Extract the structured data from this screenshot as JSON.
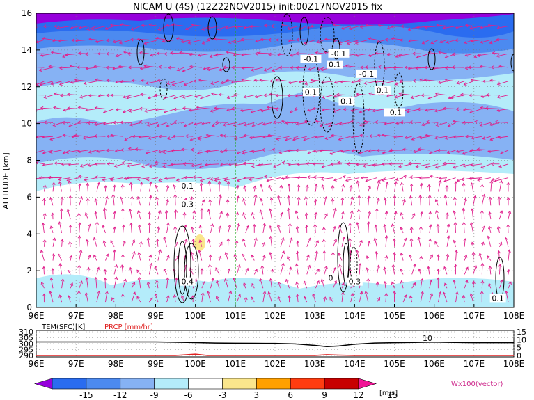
{
  "chart_data": [
    {
      "type": "heatmap",
      "title": "NICAM U (4S)  (12Z22NOV2015)  init:00Z17NOV2015  fix",
      "xlabel": "",
      "ylabel": "ALTITUDE  [km]",
      "x_ticks": [
        "96E",
        "97E",
        "98E",
        "99E",
        "100E",
        "101E",
        "102E",
        "103E",
        "104E",
        "105E",
        "106E",
        "107E",
        "108E"
      ],
      "y_ticks": [
        "0",
        "2",
        "4",
        "6",
        "8",
        "10",
        "12",
        "14",
        "16"
      ],
      "xlim": [
        96,
        108
      ],
      "ylim": [
        0,
        16
      ],
      "marker_line_lon": 101,
      "contour_labels": [
        {
          "text": "-0.1",
          "lon": 102.9,
          "alt": 13.4
        },
        {
          "text": "-0.1",
          "lon": 103.6,
          "alt": 13.7
        },
        {
          "text": "0.1",
          "lon": 103.5,
          "alt": 13.1
        },
        {
          "text": "-0.1",
          "lon": 104.3,
          "alt": 12.6
        },
        {
          "text": "0.1",
          "lon": 102.9,
          "alt": 11.6
        },
        {
          "text": "0.1",
          "lon": 104.7,
          "alt": 11.7
        },
        {
          "text": "0.1",
          "lon": 103.8,
          "alt": 11.1
        },
        {
          "text": "-0.1",
          "lon": 105.0,
          "alt": 10.5
        },
        {
          "text": "0.1",
          "lon": 99.8,
          "alt": 6.5
        },
        {
          "text": "0.3",
          "lon": 99.8,
          "alt": 5.5
        },
        {
          "text": "0.4",
          "lon": 99.8,
          "alt": 1.3
        },
        {
          "text": "0.3",
          "lon": 104.0,
          "alt": 1.3
        },
        {
          "text": "0",
          "lon": 103.4,
          "alt": 1.5
        },
        {
          "text": "0.1",
          "lon": 107.6,
          "alt": 0.4
        }
      ],
      "vector_label": "Wx100(vector)"
    },
    {
      "type": "line",
      "labels": {
        "tem": "TEM(SFC)[K]",
        "prcp": "PRCP [mm/hr]"
      },
      "left_ticks": [
        "310",
        "305",
        "300",
        "295",
        "290"
      ],
      "right_ticks": [
        "15",
        "10",
        "5",
        "0"
      ],
      "annotation": "10",
      "x_ticks": [
        "96E",
        "97E",
        "98E",
        "99E",
        "100E",
        "101E",
        "102E",
        "103E",
        "104E",
        "105E",
        "106E",
        "107E",
        "108E"
      ],
      "series": [
        {
          "name": "TEM(SFC)[K]",
          "x": [
            96,
            97,
            98,
            99,
            99.8,
            100.5,
            101,
            101.5,
            102,
            102.5,
            103,
            103.3,
            103.6,
            104,
            104.5,
            105,
            105.5,
            106,
            106.5,
            107,
            107.5,
            108
          ],
          "values": [
            301.5,
            301.5,
            301.5,
            301.5,
            301,
            300.5,
            300.4,
            300.3,
            300.2,
            299.8,
            298.5,
            297.5,
            298,
            299.5,
            300.5,
            300.8,
            301,
            301.3,
            301,
            300.8,
            300.8,
            300.8
          ]
        },
        {
          "name": "PRCP [mm/hr]",
          "x": [
            96,
            99.5,
            99.8,
            100,
            100.3,
            103,
            103.3,
            103.6,
            104,
            108
          ],
          "values": [
            0,
            0,
            0.5,
            0.8,
            0,
            0,
            0.5,
            0.2,
            0,
            0
          ]
        }
      ]
    },
    {
      "type": "colorbar",
      "ticks": [
        "-15",
        "-12",
        "-9",
        "-6",
        "-3",
        "3",
        "6",
        "9",
        "12",
        "15"
      ],
      "unit": "[m/s]",
      "colors": [
        "#9600dc",
        "#2a6cf0",
        "#4c8af0",
        "#86b2f4",
        "#b4ecfa",
        "#ffffff",
        "#fae68c",
        "#ffa000",
        "#ff3c10",
        "#c80000",
        "#f01496"
      ]
    }
  ]
}
